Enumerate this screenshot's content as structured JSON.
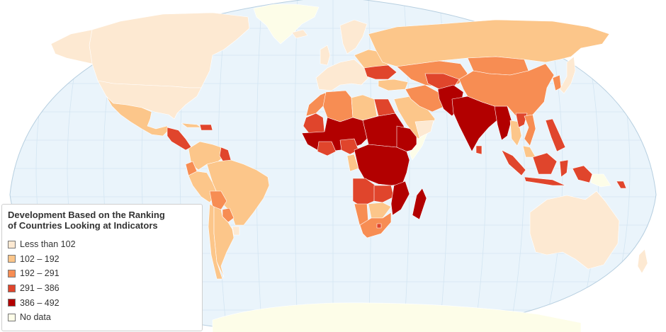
{
  "map": {
    "title": "Development Based on the Ranking\nof Countries Looking at Indicators",
    "colors": {
      "ocean": "#eaf4fb",
      "graticule": "#d3e5f2",
      "outline": "#b7cfe0",
      "country_border": "#ffffff"
    },
    "legend": {
      "items": [
        {
          "label": "Less than 102",
          "color": "#fde9d2"
        },
        {
          "label": "102 – 192",
          "color": "#fcc68a"
        },
        {
          "label": "192 – 291",
          "color": "#f78d53"
        },
        {
          "label": "291 – 386",
          "color": "#e0452c"
        },
        {
          "label": "386 – 492",
          "color": "#b20000"
        },
        {
          "label": "No data",
          "color": "#fdfde8"
        }
      ]
    },
    "regions": [
      {
        "name": "greenland",
        "band": 5
      },
      {
        "name": "canada",
        "band": 0
      },
      {
        "name": "usa",
        "band": 0
      },
      {
        "name": "alaska",
        "band": 0
      },
      {
        "name": "mexico",
        "band": 1
      },
      {
        "name": "central-america",
        "band": 3
      },
      {
        "name": "cuba",
        "band": 1
      },
      {
        "name": "haiti",
        "band": 3
      },
      {
        "name": "colombia-venezuela",
        "band": 1
      },
      {
        "name": "guyana",
        "band": 3
      },
      {
        "name": "ecuador",
        "band": 2
      },
      {
        "name": "brazil",
        "band": 1
      },
      {
        "name": "peru",
        "band": 1
      },
      {
        "name": "bolivia",
        "band": 2
      },
      {
        "name": "paraguay",
        "band": 2
      },
      {
        "name": "uruguay",
        "band": 0
      },
      {
        "name": "chile",
        "band": 1
      },
      {
        "name": "argentina",
        "band": 1
      },
      {
        "name": "iceland",
        "band": 0
      },
      {
        "name": "europe-west",
        "band": 0
      },
      {
        "name": "uk",
        "band": 0
      },
      {
        "name": "scandinavia",
        "band": 0
      },
      {
        "name": "eastern-europe",
        "band": 1
      },
      {
        "name": "balkans-ukraine",
        "band": 3
      },
      {
        "name": "russia",
        "band": 1
      },
      {
        "name": "turkey",
        "band": 1
      },
      {
        "name": "morocco",
        "band": 2
      },
      {
        "name": "algeria",
        "band": 2
      },
      {
        "name": "libya",
        "band": 1
      },
      {
        "name": "egypt",
        "band": 3
      },
      {
        "name": "mauritania",
        "band": 3
      },
      {
        "name": "west-africa",
        "band": 4
      },
      {
        "name": "nigeria-region",
        "band": 3
      },
      {
        "name": "chad-sudan",
        "band": 4
      },
      {
        "name": "ethiopia-horn",
        "band": 4
      },
      {
        "name": "somalia",
        "band": 5
      },
      {
        "name": "gabon",
        "band": 1
      },
      {
        "name": "drc-east-africa",
        "band": 4
      },
      {
        "name": "angola",
        "band": 3
      },
      {
        "name": "zambia",
        "band": 3
      },
      {
        "name": "mozambique",
        "band": 4
      },
      {
        "name": "namibia",
        "band": 2
      },
      {
        "name": "botswana",
        "band": 1
      },
      {
        "name": "south-africa",
        "band": 2
      },
      {
        "name": "lesotho",
        "band": 3
      },
      {
        "name": "madagascar",
        "band": 4
      },
      {
        "name": "arabia",
        "band": 1
      },
      {
        "name": "gulf-states",
        "band": 0
      },
      {
        "name": "iran",
        "band": 2
      },
      {
        "name": "central-asia",
        "band": 2
      },
      {
        "name": "kazakhstan-south",
        "band": 3
      },
      {
        "name": "pakistan-afghanistan",
        "band": 4
      },
      {
        "name": "india",
        "band": 4
      },
      {
        "name": "sri-lanka",
        "band": 3
      },
      {
        "name": "mongolia",
        "band": 2
      },
      {
        "name": "china",
        "band": 2
      },
      {
        "name": "myanmar",
        "band": 4
      },
      {
        "name": "thailand",
        "band": 1
      },
      {
        "name": "laos",
        "band": 3
      },
      {
        "name": "vietnam",
        "band": 2
      },
      {
        "name": "korea",
        "band": 2
      },
      {
        "name": "japan",
        "band": 0
      },
      {
        "name": "philippines",
        "band": 3
      },
      {
        "name": "malaysia",
        "band": 1
      },
      {
        "name": "sumatra",
        "band": 3
      },
      {
        "name": "java",
        "band": 3
      },
      {
        "name": "borneo",
        "band": 3
      },
      {
        "name": "sulawesi",
        "band": 3
      },
      {
        "name": "new-guinea-west",
        "band": 3
      },
      {
        "name": "papua-new-guinea",
        "band": 5
      },
      {
        "name": "solomon-islands",
        "band": 3
      },
      {
        "name": "australia",
        "band": 0
      },
      {
        "name": "new-zealand",
        "band": 0
      },
      {
        "name": "antarctica",
        "band": 5
      }
    ]
  }
}
